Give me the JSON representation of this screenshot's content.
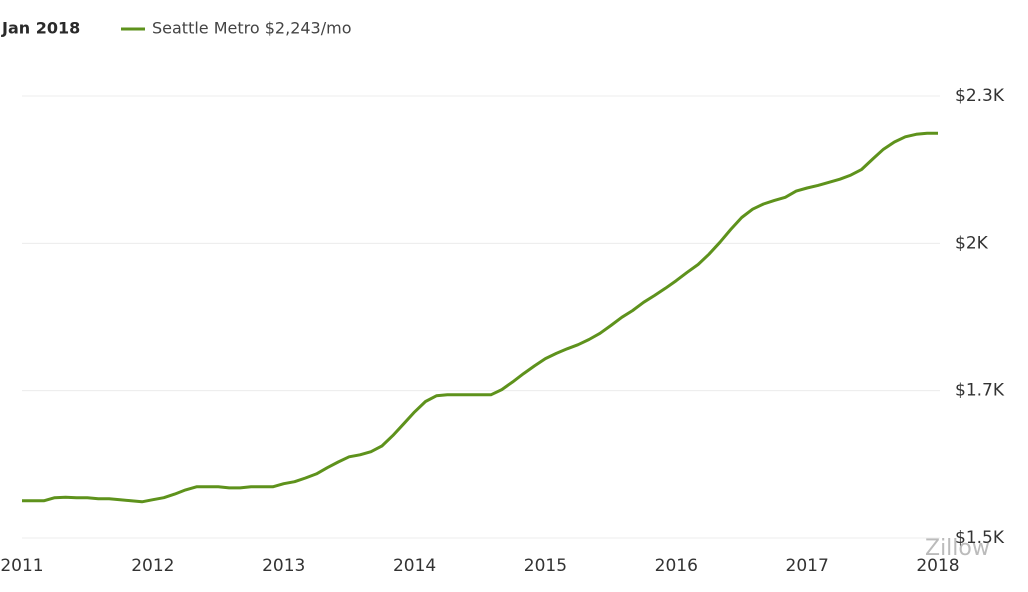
{
  "chart_data": {
    "type": "line",
    "header": "Jan 2018",
    "watermark": "Zillow",
    "categories": [
      "2011",
      null,
      null,
      null,
      null,
      null,
      null,
      null,
      null,
      null,
      null,
      null,
      "2012",
      null,
      null,
      null,
      null,
      null,
      null,
      null,
      null,
      null,
      null,
      null,
      "2013",
      null,
      null,
      null,
      null,
      null,
      null,
      null,
      null,
      null,
      null,
      null,
      "2014",
      null,
      null,
      null,
      null,
      null,
      null,
      null,
      null,
      null,
      null,
      null,
      "2015",
      null,
      null,
      null,
      null,
      null,
      null,
      null,
      null,
      null,
      null,
      null,
      "2016",
      null,
      null,
      null,
      null,
      null,
      null,
      null,
      null,
      null,
      null,
      null,
      "2017",
      null,
      null,
      null,
      null,
      null,
      null,
      null,
      null,
      null,
      null,
      null,
      "2018"
    ],
    "series": [
      {
        "name": "Seattle Metro $2,243/mo",
        "color": "#5e921c",
        "values": [
          1532,
          1532,
          1532,
          1538,
          1539,
          1538,
          1538,
          1536,
          1536,
          1534,
          1532,
          1530,
          1534,
          1538,
          1545,
          1553,
          1559,
          1559,
          1559,
          1557,
          1557,
          1559,
          1559,
          1559,
          1565,
          1569,
          1576,
          1584,
          1596,
          1607,
          1617,
          1621,
          1627,
          1638,
          1658,
          1681,
          1704,
          1724,
          1735,
          1737,
          1737,
          1737,
          1737,
          1737,
          1747,
          1762,
          1778,
          1793,
          1807,
          1817,
          1826,
          1834,
          1844,
          1856,
          1871,
          1887,
          1900,
          1916,
          1929,
          1943,
          1958,
          1974,
          1989,
          2009,
          2032,
          2057,
          2080,
          2096,
          2106,
          2113,
          2119,
          2131,
          2137,
          2142,
          2148,
          2154,
          2162,
          2173,
          2193,
          2212,
          2226,
          2236,
          2241,
          2243,
          2243
        ]
      }
    ],
    "ylim": [
      1460,
      2315
    ],
    "yticks": [
      {
        "value": 1460,
        "label": "$1.5K"
      },
      {
        "value": 1745,
        "label": "$1.7K"
      },
      {
        "value": 2030,
        "label": "$2K"
      },
      {
        "value": 2315,
        "label": "$2.3K"
      }
    ],
    "grid": true
  }
}
